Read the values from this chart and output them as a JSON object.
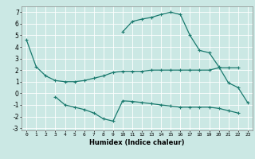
{
  "xlabel": "Humidex (Indice chaleur)",
  "xlim": [
    -0.5,
    23.5
  ],
  "ylim": [
    -3.2,
    7.5
  ],
  "bg_color": "#cbe8e4",
  "grid_color": "#ffffff",
  "line_color": "#1a7a6e",
  "xticks": [
    0,
    1,
    2,
    3,
    4,
    5,
    6,
    7,
    8,
    9,
    10,
    11,
    12,
    13,
    14,
    15,
    16,
    17,
    18,
    19,
    20,
    21,
    22,
    23
  ],
  "yticks": [
    -3,
    -2,
    -1,
    0,
    1,
    2,
    3,
    4,
    5,
    6,
    7
  ],
  "lines": [
    {
      "x": [
        0,
        1,
        2,
        3,
        4,
        5,
        6,
        7,
        8,
        9,
        10,
        11,
        12,
        13,
        14,
        15,
        16,
        17,
        18,
        19,
        20,
        21,
        22
      ],
      "y": [
        4.6,
        2.3,
        1.5,
        1.1,
        1.0,
        1.0,
        1.1,
        1.3,
        1.5,
        1.8,
        1.9,
        1.9,
        1.9,
        2.0,
        2.0,
        2.0,
        2.0,
        2.0,
        2.0,
        2.0,
        2.2,
        2.2,
        2.2
      ]
    },
    {
      "x": [
        3,
        4,
        5,
        6,
        7,
        8,
        9,
        10,
        11,
        12,
        13,
        14,
        15,
        16,
        17,
        18,
        19,
        20,
        21,
        22
      ],
      "y": [
        -0.3,
        -1.0,
        -1.2,
        -1.4,
        -1.7,
        -2.2,
        -2.4,
        -0.65,
        -0.7,
        -0.8,
        -0.9,
        -1.0,
        -1.1,
        -1.2,
        -1.2,
        -1.2,
        -1.2,
        -1.3,
        -1.5,
        -1.7
      ]
    },
    {
      "x": [
        10,
        11,
        12,
        13,
        14,
        15,
        16,
        17,
        18,
        19,
        20,
        21,
        22,
        23
      ],
      "y": [
        5.3,
        6.2,
        6.4,
        6.55,
        6.8,
        7.0,
        6.8,
        5.0,
        3.7,
        3.5,
        2.3,
        0.9,
        0.5,
        -0.8
      ]
    }
  ]
}
